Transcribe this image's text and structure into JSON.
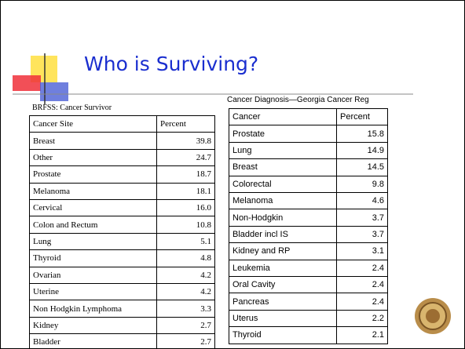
{
  "title": "Who is Surviving?",
  "left_table": {
    "caption": "BRFSS: Cancer Survivor",
    "header": [
      "Cancer Site",
      "Percent"
    ],
    "rows": [
      [
        "Breast",
        "39.8"
      ],
      [
        "Other",
        "24.7"
      ],
      [
        "Prostate",
        "18.7"
      ],
      [
        "Melanoma",
        "18.1"
      ],
      [
        "Cervical",
        "16.0"
      ],
      [
        "Colon and Rectum",
        "10.8"
      ],
      [
        "Lung",
        "5.1"
      ],
      [
        "Thyroid",
        "4.8"
      ],
      [
        "Ovarian",
        "4.2"
      ],
      [
        "Uterine",
        "4.2"
      ],
      [
        "Non Hodgkin Lymphoma",
        "3.3"
      ],
      [
        "Kidney",
        "2.7"
      ],
      [
        "Bladder",
        "2.7"
      ]
    ]
  },
  "right_table": {
    "caption": "Cancer Diagnosis—Georgia Cancer Reg",
    "header": [
      "Cancer",
      "Percent"
    ],
    "rows": [
      [
        "Prostate",
        "15.8"
      ],
      [
        "Lung",
        "14.9"
      ],
      [
        "Breast",
        "14.5"
      ],
      [
        "Colorectal",
        "9.8"
      ],
      [
        "Melanoma",
        "4.6"
      ],
      [
        "Non-Hodgkin",
        "3.7"
      ],
      [
        "Bladder incl IS",
        "3.7"
      ],
      [
        "Kidney and RP",
        "3.1"
      ],
      [
        "Leukemia",
        "2.4"
      ],
      [
        "Oral Cavity",
        "2.4"
      ],
      [
        "Pancreas",
        "2.4"
      ],
      [
        "Uterus",
        "2.2"
      ],
      [
        "Thyroid",
        "2.1"
      ]
    ]
  }
}
